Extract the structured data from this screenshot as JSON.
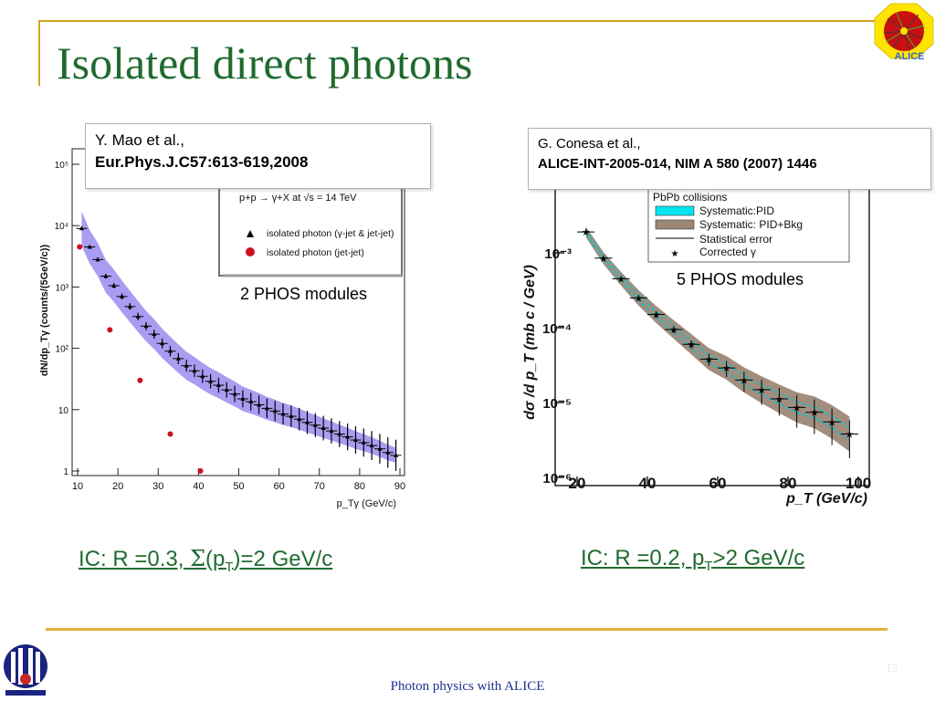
{
  "slide": {
    "title": "Isolated direct photons",
    "footer": "Photon physics with ALICE",
    "page_number": "15",
    "logo_text": "ALICE",
    "caption_left_parts": [
      "IC: R =0.3, ",
      "Σ",
      "(p",
      "T",
      ")=2 GeV/c"
    ],
    "caption_right_parts": [
      "IC: R =0.2, p",
      "T",
      ">2 GeV/c"
    ]
  },
  "refs": {
    "left": {
      "authors": "Y. Mao et al.,",
      "journal": "Eur.Phys.J.C57:613-619,2008"
    },
    "right": {
      "authors": "G. Conesa et al.,",
      "journal": "ALICE-INT-2005-014, NIM A 580 (2007) 1446"
    }
  },
  "chart_data": [
    {
      "type": "scatter",
      "ylabel": "dN/dp_Tγ (counts/(5GeV/c))",
      "xlabel": "p_Tγ (GeV/c)",
      "xlim": [
        10,
        90
      ],
      "ylim": [
        1,
        100000
      ],
      "log_y": true,
      "x_ticks": [
        "10",
        "20",
        "30",
        "40",
        "50",
        "60",
        "70",
        "80",
        "90"
      ],
      "y_ticks": [
        {
          "label": "1",
          "value": 1
        },
        {
          "label": "10",
          "value": 10
        },
        {
          "label": "10²",
          "value": 100
        },
        {
          "label": "10³",
          "value": 1000
        },
        {
          "label": "10⁴",
          "value": 10000
        },
        {
          "label": "10⁵",
          "value": 100000
        }
      ],
      "legend_header": "p+p → γ+X  at √s = 14 TeV",
      "annotation": "2 PHOS modules",
      "band_color": "#9a8cf0",
      "series": [
        {
          "name": "isolated photon (γ-jet & jet-jet)",
          "marker": "triangle",
          "color": "#000000",
          "x": [
            11,
            13,
            15,
            17,
            19,
            21,
            23,
            25,
            27,
            29,
            31,
            33,
            35,
            37,
            39,
            41,
            43,
            45,
            47,
            49,
            51,
            53,
            55,
            57,
            59,
            61,
            63,
            65,
            67,
            69,
            71,
            73,
            75,
            77,
            79,
            81,
            83,
            85,
            87,
            89
          ],
          "y": [
            9000,
            4500,
            2800,
            1500,
            1050,
            700,
            480,
            330,
            230,
            170,
            120,
            90,
            68,
            52,
            43,
            35,
            29,
            25,
            21,
            18,
            15,
            13.5,
            12,
            10.5,
            9.5,
            8.5,
            7.8,
            7,
            6.2,
            5.6,
            5,
            4.5,
            4,
            3.6,
            3.2,
            2.9,
            2.6,
            2.3,
            2,
            1.8
          ]
        },
        {
          "name": "isolated photon (jet-jet)",
          "marker": "circle",
          "color": "#cc1020",
          "x": [
            10.5,
            18,
            25.5,
            33,
            40.5
          ],
          "y": [
            4500,
            200,
            30,
            4,
            1
          ]
        }
      ]
    },
    {
      "type": "scatter",
      "ylabel": "dσ /d p_T (mb c / GeV)",
      "xlabel": "p_T (GeV/c)",
      "xlim": [
        20,
        100
      ],
      "ylim": [
        1e-06,
        0.01
      ],
      "log_y": true,
      "x_ticks": [
        "20",
        "40",
        "60",
        "80",
        "100"
      ],
      "y_ticks": [
        {
          "label": "10⁻³",
          "value": 0.001
        },
        {
          "label": "10⁻⁴",
          "value": 0.0001
        },
        {
          "label": "10⁻⁵",
          "value": 1e-05
        },
        {
          "label": "10⁻⁶",
          "value": 1e-06
        }
      ],
      "legend": {
        "header": "PbPb collisions",
        "items": [
          {
            "label": "Systematic:PID",
            "kind": "fill",
            "color": "#00e5f0"
          },
          {
            "label": "Systematic: PID+Bkg",
            "kind": "fill",
            "color": "#9c8878"
          },
          {
            "label": "Statistical error",
            "kind": "line",
            "color": "#000000"
          },
          {
            "label": "Corrected γ",
            "kind": "star",
            "color": "#000000"
          }
        ]
      },
      "annotation": "5 PHOS modules",
      "series": [
        {
          "name": "Corrected γ",
          "marker": "star",
          "color": "#000000",
          "x": [
            22.5,
            27.5,
            32.5,
            37.5,
            42.5,
            47.5,
            52.5,
            57.5,
            62.5,
            67.5,
            72.5,
            77.5,
            82.5,
            87.5,
            92.5,
            97.5
          ],
          "y": [
            0.0019,
            0.00085,
            0.00045,
            0.00025,
            0.00015,
            9.45e-05,
            6e-05,
            3.8e-05,
            2.9e-05,
            2e-05,
            1.48e-05,
            1.12e-05,
            8.6e-06,
            7.4e-06,
            5.5e-06,
            3.8e-06
          ],
          "yerr_low": [
            0.0001,
            5e-05,
            3e-05,
            2e-05,
            1.5e-05,
            1e-05,
            8e-06,
            7e-06,
            7e-06,
            6e-06,
            5.5e-06,
            4.5e-06,
            4e-06,
            3.6e-06,
            2.8e-06,
            2e-06
          ],
          "yerr_high": [
            0.0001,
            5e-05,
            3e-05,
            2e-05,
            1.5e-05,
            1e-05,
            8e-06,
            7e-06,
            7e-06,
            6e-06,
            5.5e-06,
            4.5e-06,
            4e-06,
            3.6e-06,
            2.8e-06,
            2e-06
          ]
        }
      ]
    }
  ]
}
